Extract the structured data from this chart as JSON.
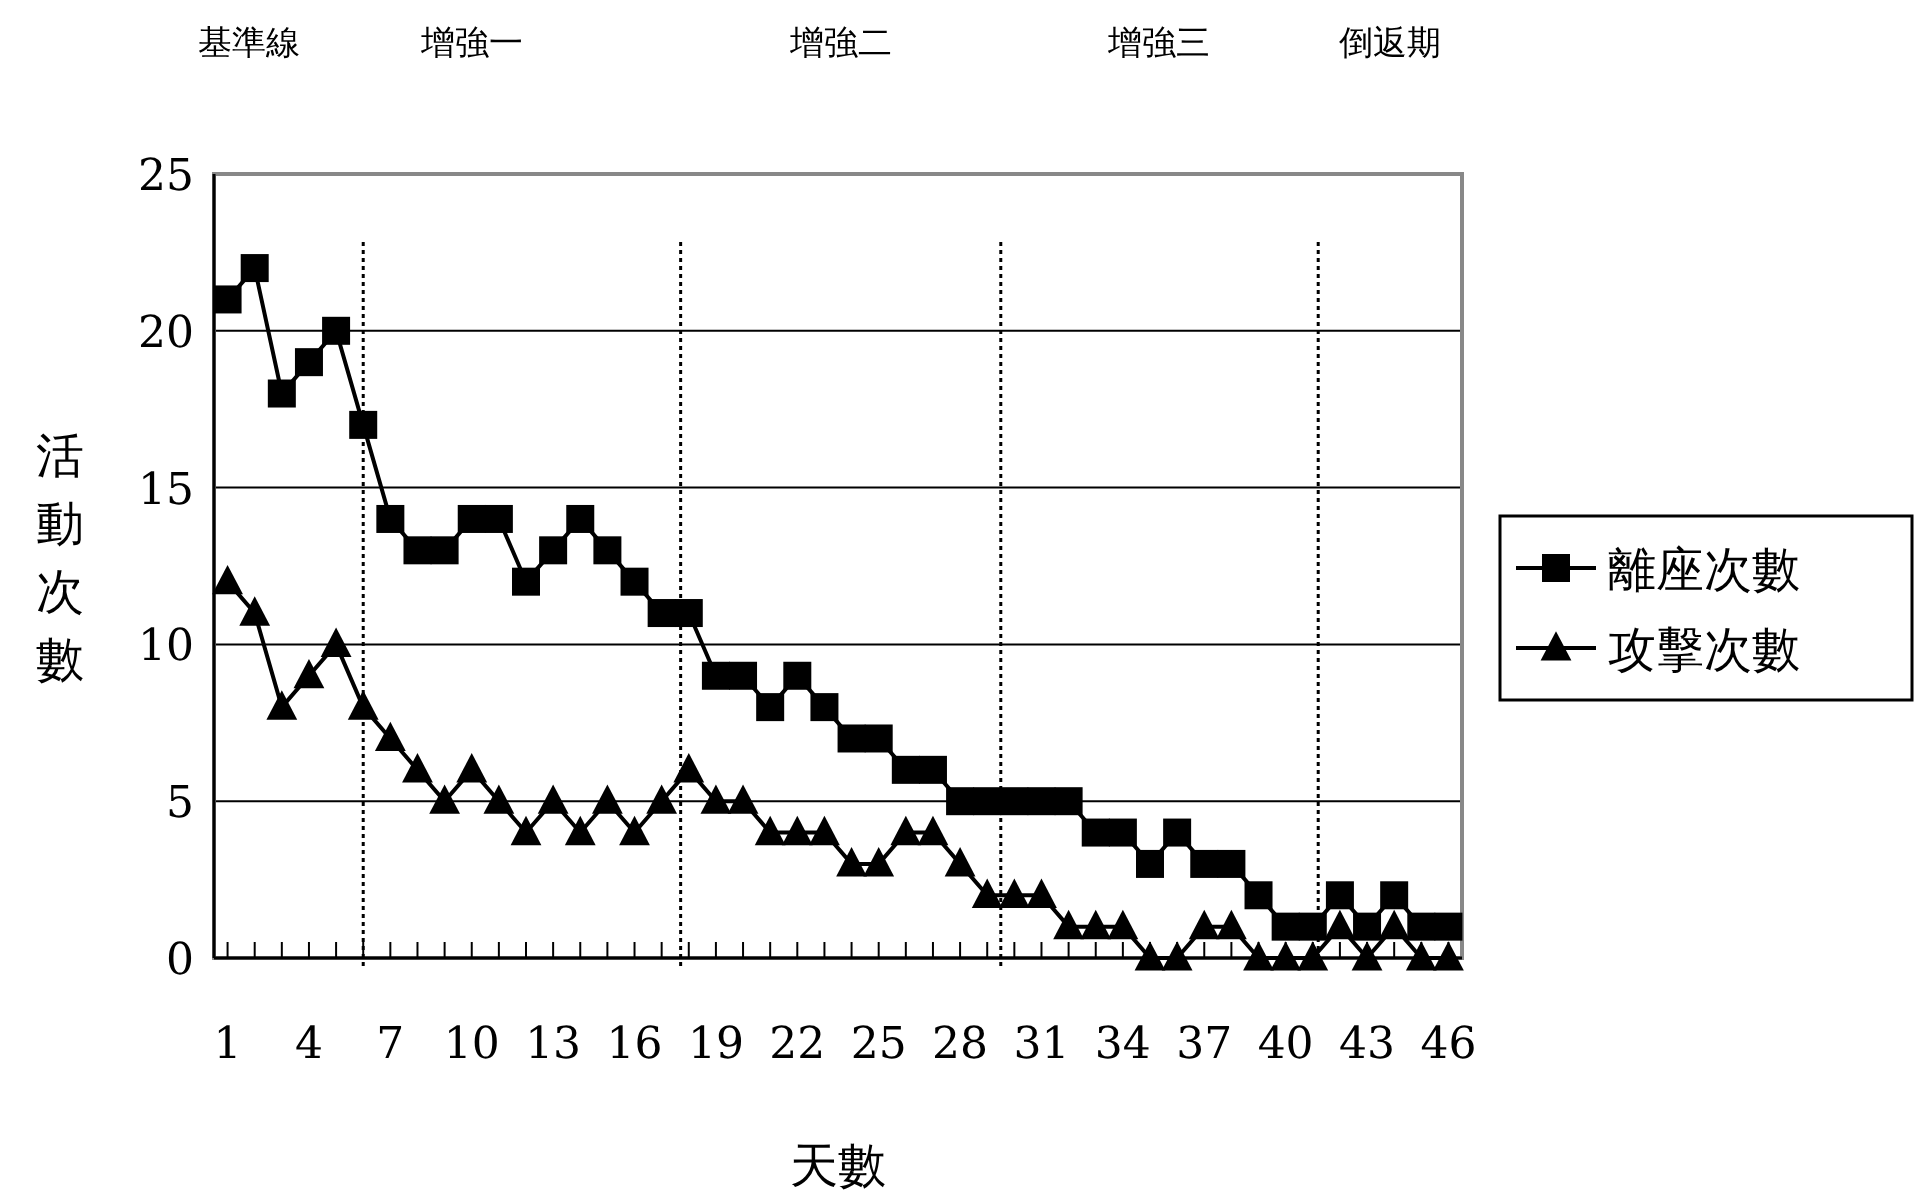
{
  "chart_data": {
    "type": "line",
    "xlabel": "天數",
    "ylabel": "活動次數",
    "x": [
      1,
      2,
      3,
      4,
      5,
      6,
      7,
      8,
      9,
      10,
      11,
      12,
      13,
      14,
      15,
      16,
      17,
      18,
      19,
      20,
      21,
      22,
      23,
      24,
      25,
      26,
      27,
      28,
      29,
      30,
      31,
      32,
      33,
      34,
      35,
      36,
      37,
      38,
      39,
      40,
      41,
      42,
      43,
      44,
      45,
      46
    ],
    "xlim": [
      0.5,
      46.5
    ],
    "xticks": [
      1,
      {
        "value": 2,
        "label": null
      },
      {
        "value": 3,
        "label": null
      },
      4,
      {
        "value": 5,
        "label": null
      },
      {
        "value": 6,
        "label": null
      },
      7,
      {
        "value": 8,
        "label": null
      },
      {
        "value": 9,
        "label": null
      },
      10,
      {
        "value": 11,
        "label": null
      },
      {
        "value": 12,
        "label": null
      },
      13,
      {
        "value": 14,
        "label": null
      },
      {
        "value": 15,
        "label": null
      },
      16,
      {
        "value": 17,
        "label": null
      },
      {
        "value": 18,
        "label": null
      },
      19,
      {
        "value": 20,
        "label": null
      },
      {
        "value": 21,
        "label": null
      },
      22,
      {
        "value": 23,
        "label": null
      },
      {
        "value": 24,
        "label": null
      },
      25,
      {
        "value": 26,
        "label": null
      },
      {
        "value": 27,
        "label": null
      },
      28,
      {
        "value": 29,
        "label": null
      },
      {
        "value": 30,
        "label": null
      },
      31,
      {
        "value": 32,
        "label": null
      },
      {
        "value": 33,
        "label": null
      },
      34,
      {
        "value": 35,
        "label": null
      },
      {
        "value": 36,
        "label": null
      },
      37,
      {
        "value": 38,
        "label": null
      },
      {
        "value": 39,
        "label": null
      },
      40,
      {
        "value": 41,
        "label": null
      },
      {
        "value": 42,
        "label": null
      },
      43,
      {
        "value": 44,
        "label": null
      },
      {
        "value": 45,
        "label": null
      },
      46
    ],
    "ylim": [
      0,
      25
    ],
    "yticks": [
      0,
      5,
      10,
      15,
      20,
      25
    ],
    "grid": "y",
    "legend": "right",
    "series": [
      {
        "name": "離座次數",
        "color": "#000000",
        "marker": "square",
        "values": [
          21,
          22,
          18,
          19,
          20,
          17,
          14,
          13,
          13,
          14,
          14,
          12,
          13,
          14,
          13,
          12,
          11,
          11,
          9,
          9,
          8,
          9,
          8,
          7,
          7,
          6,
          6,
          5,
          5,
          5,
          5,
          5,
          4,
          4,
          3,
          4,
          3,
          3,
          2,
          1,
          1,
          2,
          1,
          2,
          1,
          1
        ]
      },
      {
        "name": "攻擊次數",
        "color": "#000000",
        "marker": "triangle",
        "values": [
          12,
          11,
          8,
          9,
          10,
          8,
          7,
          6,
          5,
          6,
          5,
          4,
          5,
          4,
          5,
          4,
          5,
          6,
          5,
          5,
          4,
          4,
          4,
          3,
          3,
          4,
          4,
          3,
          2,
          2,
          2,
          1,
          1,
          1,
          0,
          0,
          1,
          1,
          0,
          0,
          0,
          1,
          0,
          1,
          0,
          0
        ]
      }
    ],
    "ref_lines": [
      {
        "axis": "x",
        "value": 6,
        "line_style": "dotted"
      },
      {
        "axis": "x",
        "value": 17.7,
        "line_style": "dotted"
      },
      {
        "axis": "x",
        "value": 29.5,
        "line_style": "dotted"
      },
      {
        "axis": "x",
        "value": 41.2,
        "line_style": "dotted"
      }
    ],
    "annotations": [
      "基準線",
      "增強一",
      "增強二",
      "增強三",
      "倒返期"
    ]
  }
}
